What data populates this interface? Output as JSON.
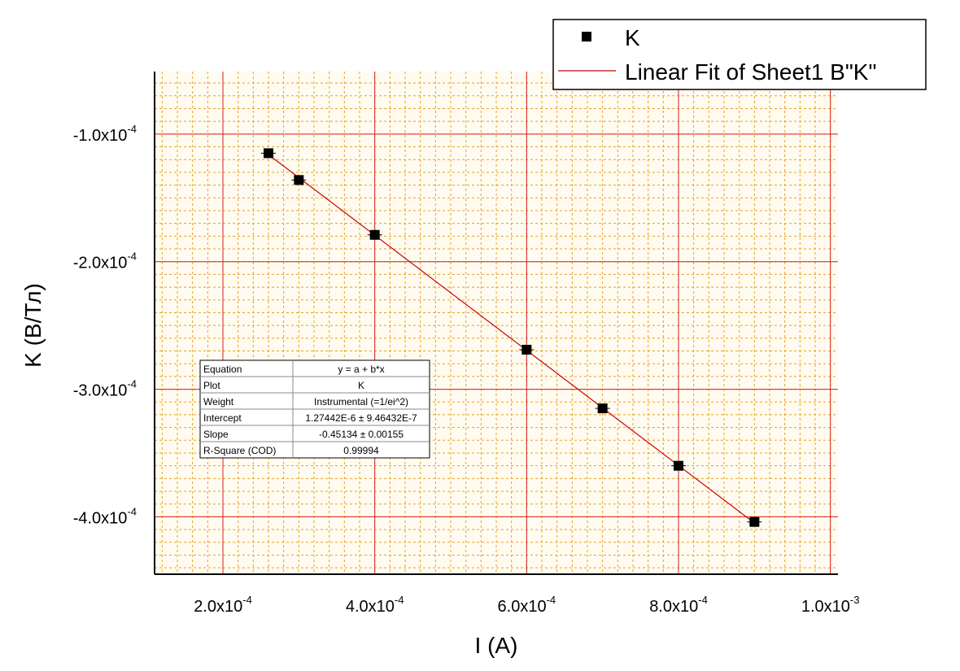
{
  "chart_data": {
    "type": "scatter",
    "xlabel": "I (A)",
    "ylabel": "K (В/Тл)",
    "xlim": [
      0.00011,
      0.00101
    ],
    "ylim": [
      -0.000445,
      -5.1e-05
    ],
    "x_major_ticks": [
      0.0002,
      0.0004,
      0.0006,
      0.0008,
      0.001
    ],
    "x_tick_labels": [
      {
        "mant": "2.0x10",
        "exp": "-4"
      },
      {
        "mant": "4.0x10",
        "exp": "-4"
      },
      {
        "mant": "6.0x10",
        "exp": "-4"
      },
      {
        "mant": "8.0x10",
        "exp": "-4"
      },
      {
        "mant": "1.0x10",
        "exp": "-3"
      }
    ],
    "y_major_ticks": [
      -0.0001,
      -0.0002,
      -0.0003,
      -0.0004
    ],
    "y_tick_labels": [
      {
        "mant": "-1.0x10",
        "exp": "-4"
      },
      {
        "mant": "-2.0x10",
        "exp": "-4"
      },
      {
        "mant": "-3.0x10",
        "exp": "-4"
      },
      {
        "mant": "-4.0x10",
        "exp": "-4"
      }
    ],
    "minor_per_major_x": 10,
    "minor_per_major_y": 10,
    "grid": true,
    "background_color": "#fffbf0",
    "major_grid_color": "#d42020",
    "minor_grid_color": "#e8a020",
    "series": [
      {
        "name": "K",
        "marker": "square",
        "color": "#000000",
        "x": [
          0.00026,
          0.0003,
          0.0004,
          0.0006,
          0.0007,
          0.0008,
          0.0009
        ],
        "y": [
          -0.000115,
          -0.000136,
          -0.000179,
          -0.000269,
          -0.000315,
          -0.00036,
          -0.000404
        ]
      },
      {
        "name": "Linear Fit of Sheet1 B\"K\"",
        "line": true,
        "color": "#cc0000",
        "x": [
          0.00026,
          0.0009
        ],
        "y": [
          -0.0001161,
          -0.0004049
        ]
      }
    ],
    "legend": {
      "position": "top-right",
      "entries": [
        "K",
        "Linear Fit of Sheet1 B\"K\""
      ]
    },
    "stats_table": {
      "rows": [
        [
          "Equation",
          "y = a + b*x"
        ],
        [
          "Plot",
          "K"
        ],
        [
          "Weight",
          "Instrumental (=1/ei^2)"
        ],
        [
          "Intercept",
          "1.27442E-6 ± 9.46432E-7"
        ],
        [
          "Slope",
          "-0.45134 ± 0.00155"
        ],
        [
          "R-Square (COD)",
          "0.99994"
        ]
      ]
    }
  }
}
